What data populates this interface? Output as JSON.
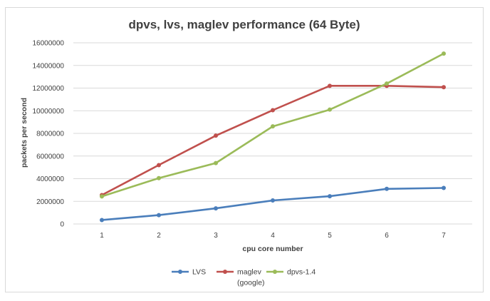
{
  "chart_data": {
    "type": "line",
    "title": "dpvs, lvs, maglev performance (64 Byte)",
    "xlabel": "cpu core number",
    "ylabel": "packets per second",
    "x": [
      1,
      2,
      3,
      4,
      5,
      6,
      7
    ],
    "ylim": [
      0,
      16000000
    ],
    "yticks": [
      0,
      2000000,
      4000000,
      6000000,
      8000000,
      10000000,
      12000000,
      14000000,
      16000000
    ],
    "ytick_labels": [
      "0",
      "2000000",
      "4000000",
      "6000000",
      "8000000",
      "10000000",
      "12000000",
      "14000000",
      "16000000"
    ],
    "grid": true,
    "legend_position": "bottom",
    "series": [
      {
        "name": "LVS",
        "legend_lines": [
          "LVS"
        ],
        "color": "#4a7ebb",
        "values": [
          350000,
          780000,
          1380000,
          2080000,
          2450000,
          3100000,
          3180000
        ]
      },
      {
        "name": "maglev (google)",
        "legend_lines": [
          "maglev",
          "(google)"
        ],
        "color": "#c0504d",
        "values": [
          2550000,
          5200000,
          7800000,
          10050000,
          12200000,
          12200000,
          12080000
        ]
      },
      {
        "name": "dpvs-1.4",
        "legend_lines": [
          "dpvs-1.4"
        ],
        "color": "#9bbb59",
        "values": [
          2430000,
          4050000,
          5380000,
          8620000,
          10100000,
          12400000,
          15050000
        ]
      }
    ]
  }
}
